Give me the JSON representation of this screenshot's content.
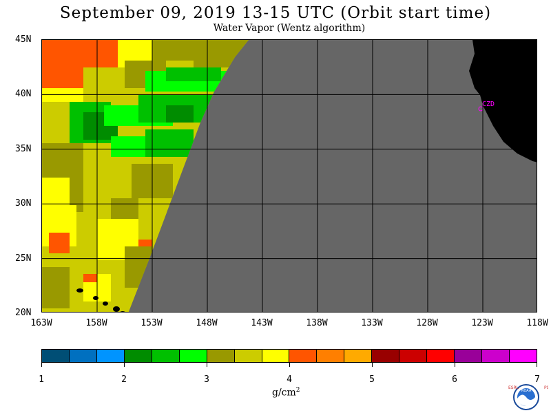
{
  "title": "September 09, 2019  13-15 UTC  (Orbit start time)",
  "subtitle": "Water Vapor (Wentz algorithm)",
  "map": {
    "lat_labels": [
      "45N",
      "40N",
      "35N",
      "30N",
      "25N",
      "20N"
    ],
    "lon_labels": [
      "163W",
      "158W",
      "153W",
      "148W",
      "143W",
      "138W",
      "133W",
      "128W",
      "123W",
      "118W"
    ],
    "site_label": "CZD",
    "colors": {
      "no_data": "#666666",
      "land": "#000000",
      "grid": "#000000",
      "site": "#ff00ff"
    }
  },
  "colorbar": {
    "tick_labels": [
      "1",
      "2",
      "3",
      "4",
      "5",
      "6",
      "7"
    ],
    "units_base": "g/cm",
    "units_exp": "2",
    "colors": [
      "#004e75",
      "#0070c0",
      "#0094ff",
      "#008c00",
      "#00c000",
      "#00ff00",
      "#999900",
      "#cccc00",
      "#ffff00",
      "#ff5500",
      "#ff7f00",
      "#ffaa00",
      "#990000",
      "#cc0000",
      "#ff0000",
      "#990099",
      "#cc00cc",
      "#ff00ff"
    ]
  },
  "logo": {
    "left_text": "ESRL",
    "right_text": "PSD",
    "center_text": "NOAA"
  }
}
